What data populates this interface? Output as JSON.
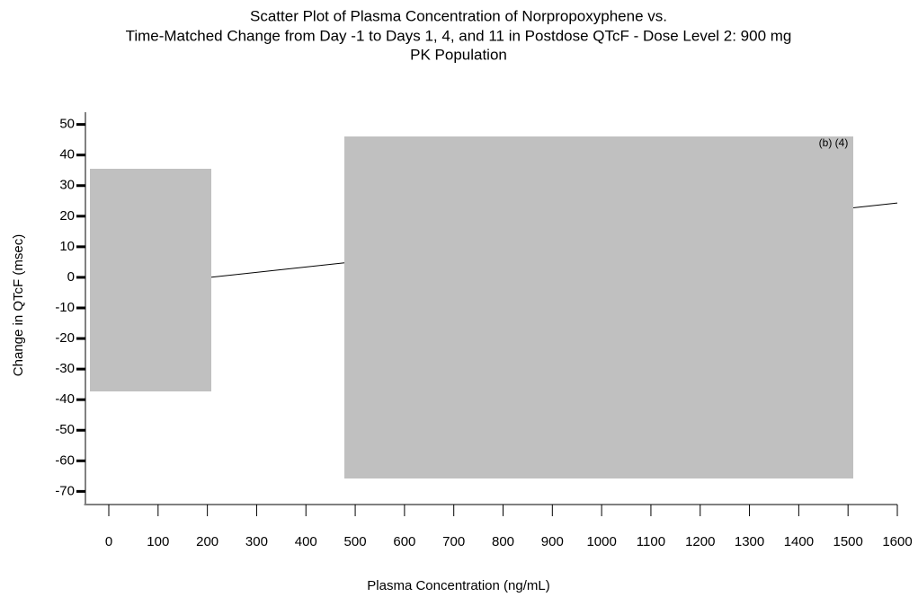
{
  "chart_data": {
    "type": "scatter",
    "title_lines": [
      "Scatter Plot of Plasma Concentration of Norpropoxyphene vs.",
      "Time-Matched Change from Day -1 to Days 1, 4, and 11 in Postdose QTcF - Dose Level 2: 900 mg",
      "PK Population"
    ],
    "x_label": "Plasma Concentration (ng/mL)",
    "y_label": "Change in QTcF (msec)",
    "annotation": "(b) (4)",
    "fit_line": {
      "x": [
        0,
        1600
      ],
      "y": [
        -3.6,
        24.3
      ],
      "color": "#000000"
    },
    "xlim": [
      -50,
      1600
    ],
    "xticks": [
      0,
      100,
      200,
      300,
      400,
      500,
      600,
      700,
      800,
      900,
      1000,
      1100,
      1200,
      1300,
      1400,
      1500,
      1600
    ],
    "ylim": [
      -74,
      54
    ],
    "yticks": [
      -70,
      -60,
      -50,
      -40,
      -30,
      -20,
      -10,
      0,
      10,
      20,
      30,
      40,
      50
    ]
  }
}
